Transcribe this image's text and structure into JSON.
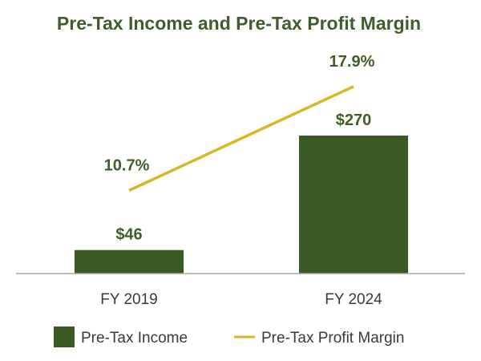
{
  "chart_data": {
    "type": "bar",
    "title": "Pre-Tax Income and Pre-Tax Profit Margin",
    "categories": [
      "FY 2019",
      "FY 2024"
    ],
    "series": [
      {
        "name": "Pre-Tax Income",
        "type": "bar",
        "values": [
          46,
          270
        ],
        "value_labels": [
          "$46",
          "$270"
        ],
        "color": "#3a5a24"
      },
      {
        "name": "Pre-Tax Profit Margin",
        "type": "line",
        "values": [
          10.7,
          17.9
        ],
        "value_labels": [
          "10.7%",
          "17.9%"
        ],
        "color": "#d9b52a"
      }
    ],
    "legend_position": "bottom",
    "grid": false
  },
  "colors": {
    "title": "#3f5f2a",
    "axis": "#a6a6a6",
    "label": "#3a3a3a"
  }
}
